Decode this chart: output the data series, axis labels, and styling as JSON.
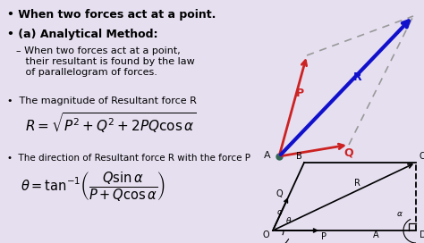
{
  "bg_color": "#e6dff0",
  "text_color": "#000000",
  "title1": "When two forces act at a point.",
  "title2": "(a) Analytical Method:",
  "desc_line1": "– When two forces act at a point,",
  "desc_line2": "   their resultant is found by the law",
  "desc_line3": "   of parallelogram of forces.",
  "bullet3": "The magnitude of Resultant force R",
  "formula1": "$R = \\sqrt{P^2 + Q^2 + 2PQ\\cos\\alpha}$",
  "bullet4": "The direction of Resultant force R with the force P",
  "formula2": "$\\theta = \\tan^{-1}\\!\\left(\\dfrac{Q\\sin\\alpha}{P+Q\\cos\\alpha}\\right)$",
  "p_color": "#cc2222",
  "q_color": "#cc2222",
  "r_color": "#1111cc",
  "dash_color": "#999999",
  "black": "#111111"
}
